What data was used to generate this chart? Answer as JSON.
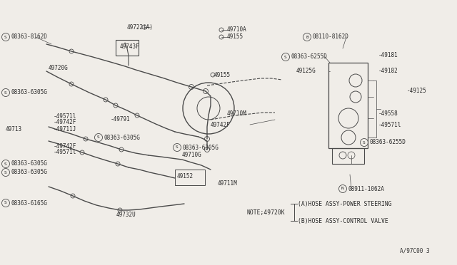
{
  "bg_color": "#f0ede8",
  "line_color": "#4a4a4a",
  "text_color": "#2a2a2a",
  "diagram_id": "A/97C00 3",
  "note_text": "NOTE;49720K",
  "note_a": "(A)HOSE ASSY-POWER STEERING",
  "note_b": "(B)HOSE ASSY-CONTROL VALVE",
  "figsize": [
    6.4,
    3.72
  ],
  "dpi": 100
}
